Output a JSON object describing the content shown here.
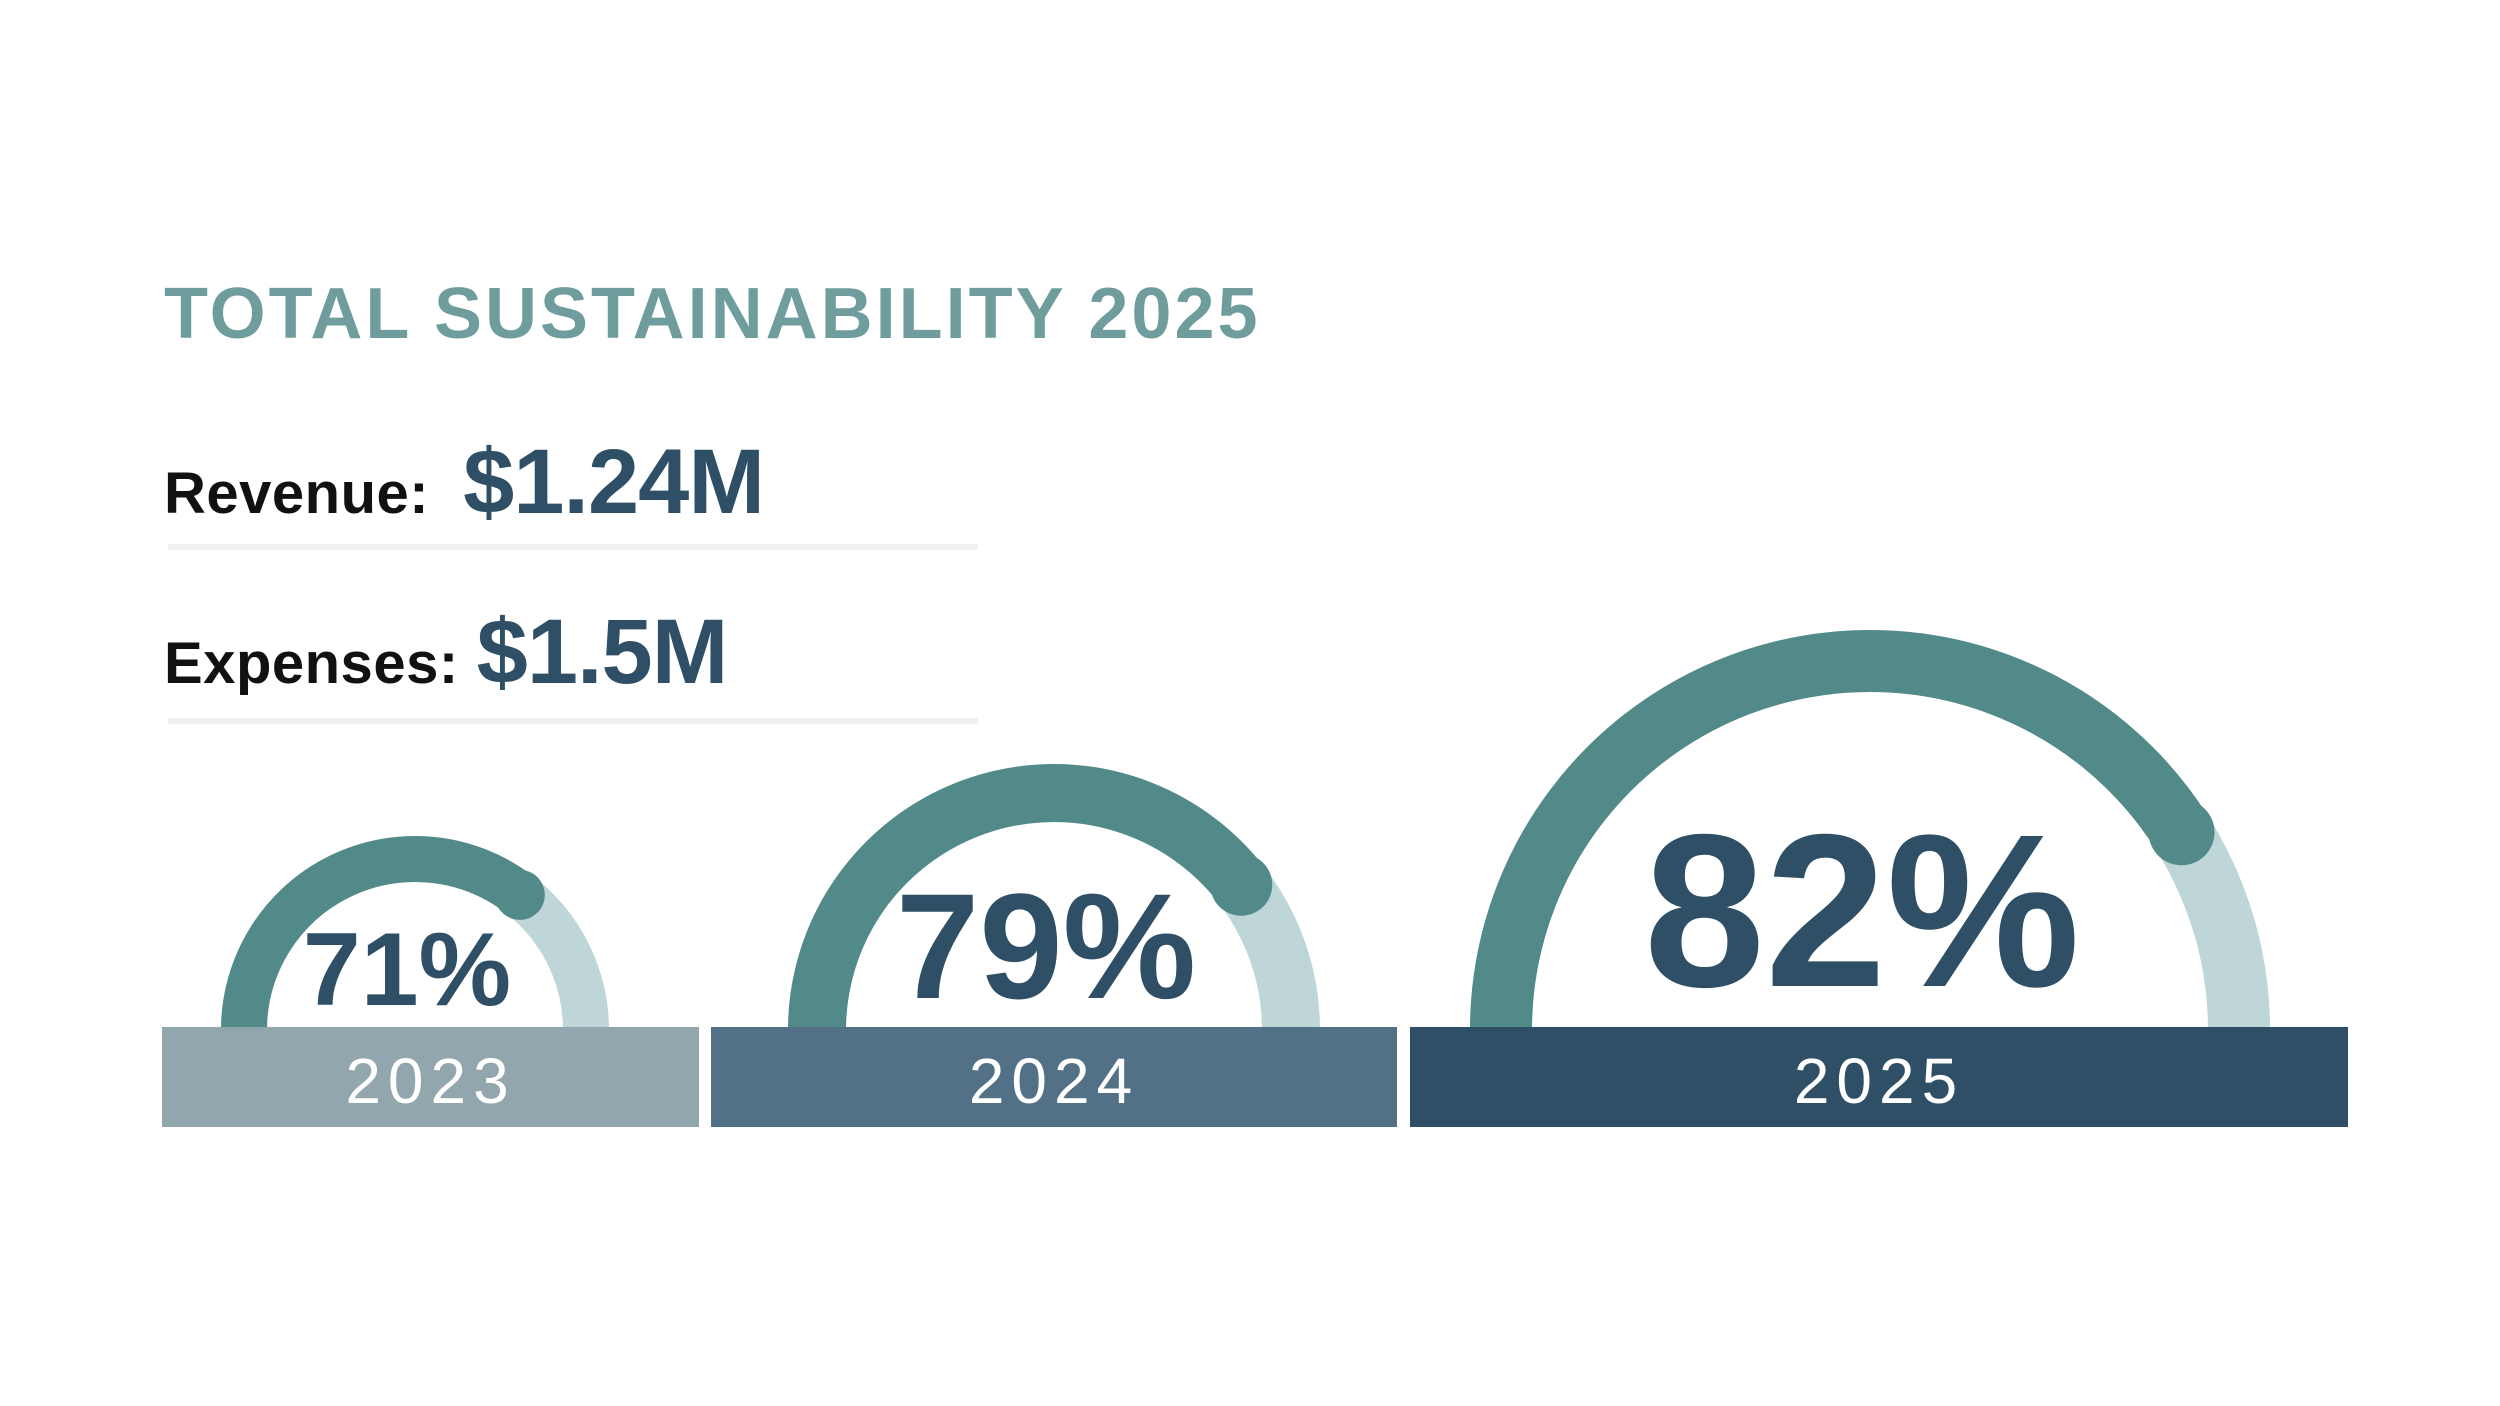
{
  "title": "TOTAL SUSTAINABILITY 2025",
  "stats": {
    "revenue": {
      "label": "Revenue:",
      "value": "$1.24M"
    },
    "expenses": {
      "label": "Expenses:",
      "value": "$1.5M"
    }
  },
  "colors": {
    "title": "#6f9d9d",
    "value_text": "#2f4f66",
    "arc_fill": "#528a89",
    "arc_track": "#bed6d7",
    "bar_2023": "#92a6ad",
    "bar_2024": "#537186",
    "bar_2025": "#2e4f66",
    "bar_text": "#ffffff"
  },
  "chart_data": {
    "type": "gauge",
    "title": "TOTAL SUSTAINABILITY 2025",
    "categories": [
      "2023",
      "2024",
      "2025"
    ],
    "values": [
      71,
      79,
      82
    ],
    "value_labels": [
      "71%",
      "79%",
      "82%"
    ],
    "unit": "%",
    "range": [
      0,
      100
    ]
  }
}
